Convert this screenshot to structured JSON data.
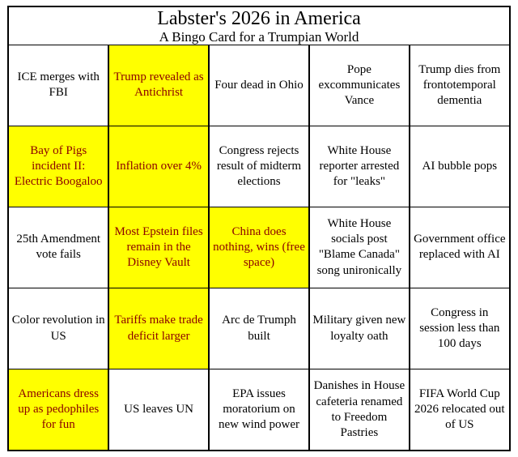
{
  "card": {
    "title": "Labster's 2026 in America",
    "subtitle": "A Bingo Card for a Trumpian World",
    "colors": {
      "highlight_background": "#ffff00",
      "highlight_text": "#8b0000",
      "normal_text": "#000000",
      "border": "#000000",
      "background": "#ffffff"
    },
    "rows": [
      {
        "cells": [
          {
            "text": "ICE merges with FBI",
            "highlighted": false
          },
          {
            "text": "Trump revealed as Antichrist",
            "highlighted": true
          },
          {
            "text": "Four dead in Ohio",
            "highlighted": false
          },
          {
            "text": "Pope excommunicates Vance",
            "highlighted": false
          },
          {
            "text": "Trump dies from frontotemporal dementia",
            "highlighted": false
          }
        ]
      },
      {
        "cells": [
          {
            "text": "Bay of Pigs incident II: Electric Boogaloo",
            "highlighted": true
          },
          {
            "text": "Inflation over 4%",
            "highlighted": true
          },
          {
            "text": "Congress rejects result of midterm elections",
            "highlighted": false
          },
          {
            "text": "White House reporter arrested for \"leaks\"",
            "highlighted": false
          },
          {
            "text": "AI bubble pops",
            "highlighted": false
          }
        ]
      },
      {
        "cells": [
          {
            "text": "25th Amendment vote fails",
            "highlighted": false
          },
          {
            "text": "Most Epstein files remain in the Disney Vault",
            "highlighted": true
          },
          {
            "text": "China does nothing, wins (free space)",
            "highlighted": true
          },
          {
            "text": "White House socials post \"Blame Canada\" song unironically",
            "highlighted": false
          },
          {
            "text": "Government office replaced with AI",
            "highlighted": false
          }
        ]
      },
      {
        "cells": [
          {
            "text": "Color revolution in US",
            "highlighted": false
          },
          {
            "text": "Tariffs make trade deficit larger",
            "highlighted": true
          },
          {
            "text": "Arc de Trumph built",
            "highlighted": false
          },
          {
            "text": "Military given new loyalty oath",
            "highlighted": false
          },
          {
            "text": "Congress in session less than 100 days",
            "highlighted": false
          }
        ]
      },
      {
        "cells": [
          {
            "text": "Americans dress up as pedophiles for fun",
            "highlighted": true
          },
          {
            "text": "US leaves UN",
            "highlighted": false
          },
          {
            "text": "EPA issues moratorium on new wind power",
            "highlighted": false
          },
          {
            "text": "Danishes in House cafeteria renamed to Freedom Pastries",
            "highlighted": false
          },
          {
            "text": "FIFA World Cup 2026 relocated out of US",
            "highlighted": false
          }
        ]
      }
    ]
  }
}
